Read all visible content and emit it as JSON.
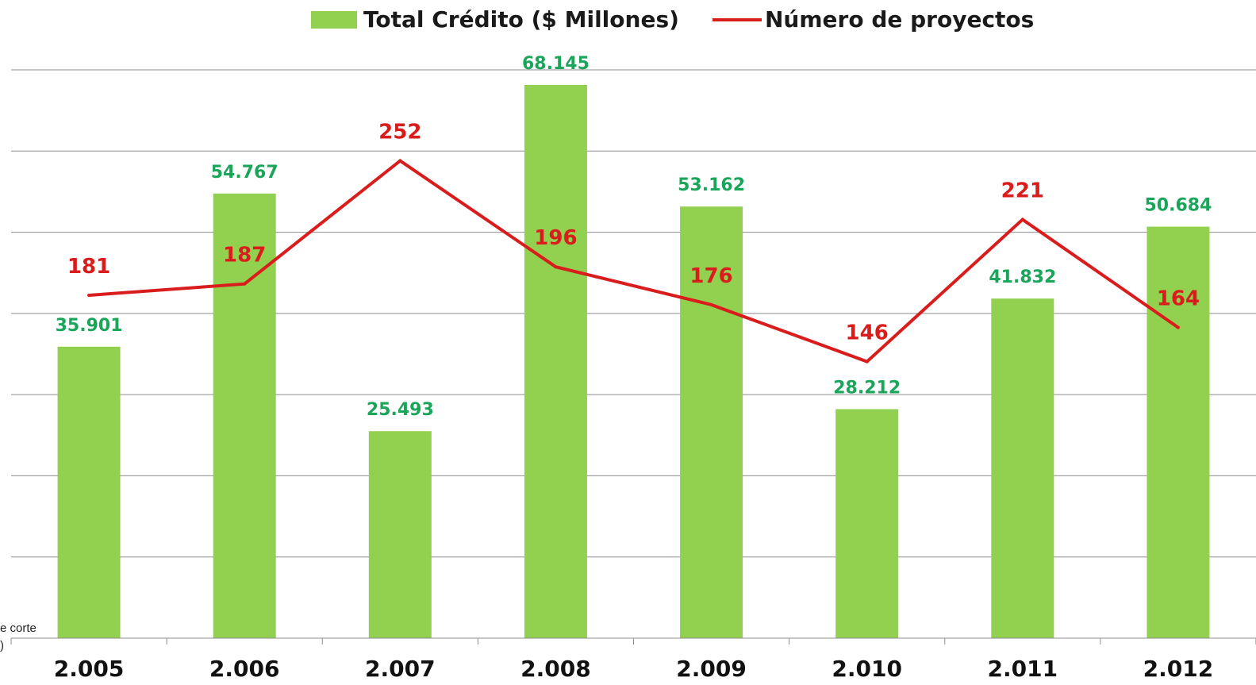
{
  "chart_data": {
    "type": "bar",
    "title": "",
    "xlabel": "",
    "ylabel": "",
    "categories": [
      "2.005",
      "2.006",
      "2.007",
      "2.008",
      "2.009",
      "2.010",
      "2.011",
      "2.012"
    ],
    "series": [
      {
        "name": "Total Crédito ($ Millones)",
        "type": "bar",
        "color": "#92d050",
        "label_color": "#1aa55a",
        "values": [
          35901,
          54767,
          25493,
          68145,
          53162,
          28212,
          41832,
          50684
        ],
        "labels": [
          "35.901",
          "54.767",
          "25.493",
          "68.145",
          "53.162",
          "28.212",
          "41.832",
          "50.684"
        ]
      },
      {
        "name": "Número de proyectos",
        "type": "line",
        "color": "#d91c1c",
        "label_color": "#d91c1c",
        "values": [
          181,
          187,
          252,
          196,
          176,
          146,
          221,
          164
        ],
        "labels": [
          "181",
          "187",
          "252",
          "196",
          "176",
          "146",
          "221",
          "164"
        ]
      }
    ],
    "ylim_bars": [
      0,
      70000
    ],
    "ylim_line": [
      0,
      300
    ],
    "grid": true,
    "legend_position": "top"
  },
  "edge_note": {
    "line1": "e corte",
    "line2": ")"
  }
}
